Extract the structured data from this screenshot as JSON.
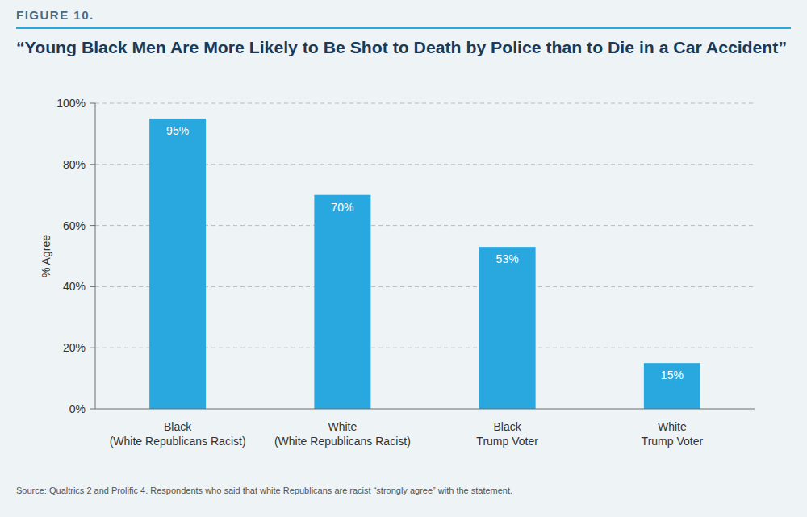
{
  "chart_data": {
    "type": "bar",
    "figure_label": "FIGURE 10.",
    "title": "“Young Black Men Are More Likely to Be Shot to Death by Police than to Die in a Car Accident”",
    "y_label": "% Agree",
    "categories": [
      "Black\n(White Republicans Racist)",
      "White\n(White Republicans Racist)",
      "Black\nTrump Voter",
      "White\nTrump Voter"
    ],
    "values": [
      95,
      70,
      53,
      15
    ],
    "value_labels": [
      "95%",
      "70%",
      "53%",
      "15%"
    ],
    "data_labels": true,
    "color": "#29a8e0",
    "ylim": [
      0,
      100
    ],
    "yticks": [
      {
        "value": 0,
        "label": "0%"
      },
      {
        "value": 20,
        "label": "20%"
      },
      {
        "value": 40,
        "label": "40%"
      },
      {
        "value": 60,
        "label": "60%"
      },
      {
        "value": 80,
        "label": "80%"
      },
      {
        "value": 100,
        "label": "100%"
      }
    ],
    "grid": true,
    "source": "Source: Qualtrics 2 and Prolific 4. Respondents who said that white Republicans are racist “strongly agree” with the statement."
  }
}
